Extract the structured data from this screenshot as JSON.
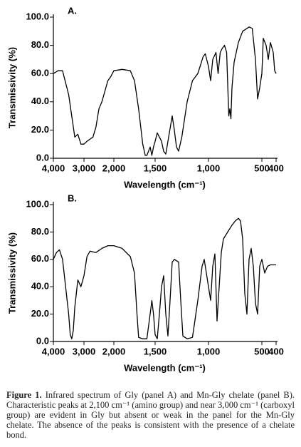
{
  "chart_data": [
    {
      "type": "line",
      "title": "A.",
      "x_label": "Wavelength (cm⁻¹)",
      "y_label": "Transmissivity (%)",
      "xlim": [
        4000,
        400
      ],
      "ylim": [
        0,
        100
      ],
      "xticks": [
        {
          "value": 4000,
          "label": "4,000"
        },
        {
          "value": 3000,
          "label": "3,000"
        },
        {
          "value": 2000,
          "label": "2,000"
        },
        {
          "value": 1500,
          "label": "1,500"
        },
        {
          "value": 1000,
          "label": "1,000"
        },
        500,
        400
      ],
      "yticks": [
        {
          "value": 0,
          "label": "0.0"
        },
        {
          "value": 20,
          "label": "20.0"
        },
        {
          "value": 40,
          "label": "40.0"
        },
        {
          "value": 60,
          "label": "60.0"
        },
        {
          "value": 80,
          "label": "80.0"
        },
        {
          "value": 100,
          "label": "100.0"
        }
      ],
      "series": [
        {
          "color": "#000000",
          "x": [
            4000,
            3850,
            3700,
            3500,
            3300,
            3200,
            3100,
            3000,
            2900,
            2700,
            2600,
            2500,
            2400,
            2200,
            2100,
            2000,
            1900,
            1800,
            1750,
            1700,
            1650,
            1620,
            1600,
            1560,
            1540,
            1520,
            1500,
            1480,
            1460,
            1440,
            1420,
            1400,
            1380,
            1340,
            1320,
            1300,
            1280,
            1250,
            1200,
            1150,
            1100,
            1050,
            1030,
            1000,
            980,
            960,
            930,
            910,
            890,
            870,
            850,
            830,
            810,
            800,
            790,
            780,
            760,
            720,
            680,
            620,
            590,
            560,
            540,
            520,
            500,
            490,
            470,
            455,
            440,
            420,
            410,
            400
          ],
          "values": [
            60,
            62,
            62,
            45,
            15,
            17,
            10,
            10,
            12,
            15,
            22,
            35,
            40,
            55,
            58,
            62,
            63,
            62,
            55,
            35,
            10,
            2,
            2,
            8,
            2,
            8,
            12,
            18,
            15,
            12,
            5,
            3,
            12,
            30,
            20,
            8,
            5,
            15,
            40,
            55,
            60,
            72,
            74,
            65,
            55,
            70,
            75,
            60,
            75,
            78,
            80,
            75,
            30,
            35,
            28,
            50,
            68,
            82,
            90,
            93,
            92,
            70,
            42,
            50,
            60,
            85,
            80,
            70,
            82,
            75,
            62,
            60
          ]
        }
      ]
    },
    {
      "type": "line",
      "title": "B.",
      "x_label": "Wavelength (cm⁻¹)",
      "y_label": "Transmissivity (%)",
      "xlim": [
        4000,
        400
      ],
      "ylim": [
        0,
        100
      ],
      "xticks": [
        {
          "value": 4000,
          "label": "4,000"
        },
        {
          "value": 3000,
          "label": "3,000"
        },
        {
          "value": 2000,
          "label": "2,000"
        },
        {
          "value": 1500,
          "label": "1,500"
        },
        {
          "value": 1000,
          "label": "1,000"
        },
        500,
        400
      ],
      "yticks": [
        {
          "value": 0,
          "label": "0.0"
        },
        {
          "value": 20,
          "label": "20.0"
        },
        {
          "value": 40,
          "label": "40.0"
        },
        {
          "value": 60,
          "label": "60.0"
        },
        {
          "value": 80,
          "label": "80.0"
        },
        {
          "value": 100,
          "label": "100.0"
        }
      ],
      "series": [
        {
          "color": "#000000",
          "x": [
            4000,
            3900,
            3800,
            3700,
            3600,
            3500,
            3450,
            3400,
            3350,
            3300,
            3200,
            3100,
            3000,
            2900,
            2800,
            2600,
            2400,
            2200,
            2000,
            1900,
            1800,
            1750,
            1720,
            1700,
            1650,
            1600,
            1560,
            1540,
            1520,
            1500,
            1480,
            1460,
            1440,
            1420,
            1400,
            1380,
            1360,
            1340,
            1320,
            1280,
            1260,
            1240,
            1200,
            1150,
            1100,
            1060,
            1040,
            1000,
            980,
            960,
            940,
            920,
            900,
            880,
            860,
            820,
            780,
            750,
            720,
            700,
            680,
            660,
            640,
            620,
            600,
            580,
            560,
            540,
            520,
            500,
            480,
            460,
            440,
            400
          ],
          "values": [
            60,
            65,
            67,
            60,
            40,
            20,
            5,
            2,
            8,
            25,
            45,
            40,
            48,
            62,
            66,
            65,
            68,
            70,
            70,
            68,
            62,
            50,
            20,
            3,
            2,
            2,
            20,
            30,
            20,
            5,
            2,
            20,
            40,
            48,
            20,
            4,
            30,
            58,
            60,
            58,
            30,
            4,
            2,
            3,
            30,
            55,
            60,
            40,
            30,
            55,
            64,
            15,
            40,
            65,
            75,
            80,
            85,
            88,
            90,
            88,
            75,
            35,
            20,
            60,
            68,
            55,
            28,
            20,
            55,
            60,
            50,
            55,
            56,
            56
          ]
        }
      ]
    }
  ],
  "caption": {
    "label": "Figure 1.",
    "text": "Infrared spectrum of Gly (panel A) and Mn-Gly chelate (panel B). Characteristic peaks at 2,100 cm⁻¹ (amino group) and near 3,000 cm⁻¹ (carboxyl group) are evident in Gly but absent or weak in the panel for the Mn-Gly chelate. The absence of the peaks is consistent with the presence of a chelate bond."
  }
}
